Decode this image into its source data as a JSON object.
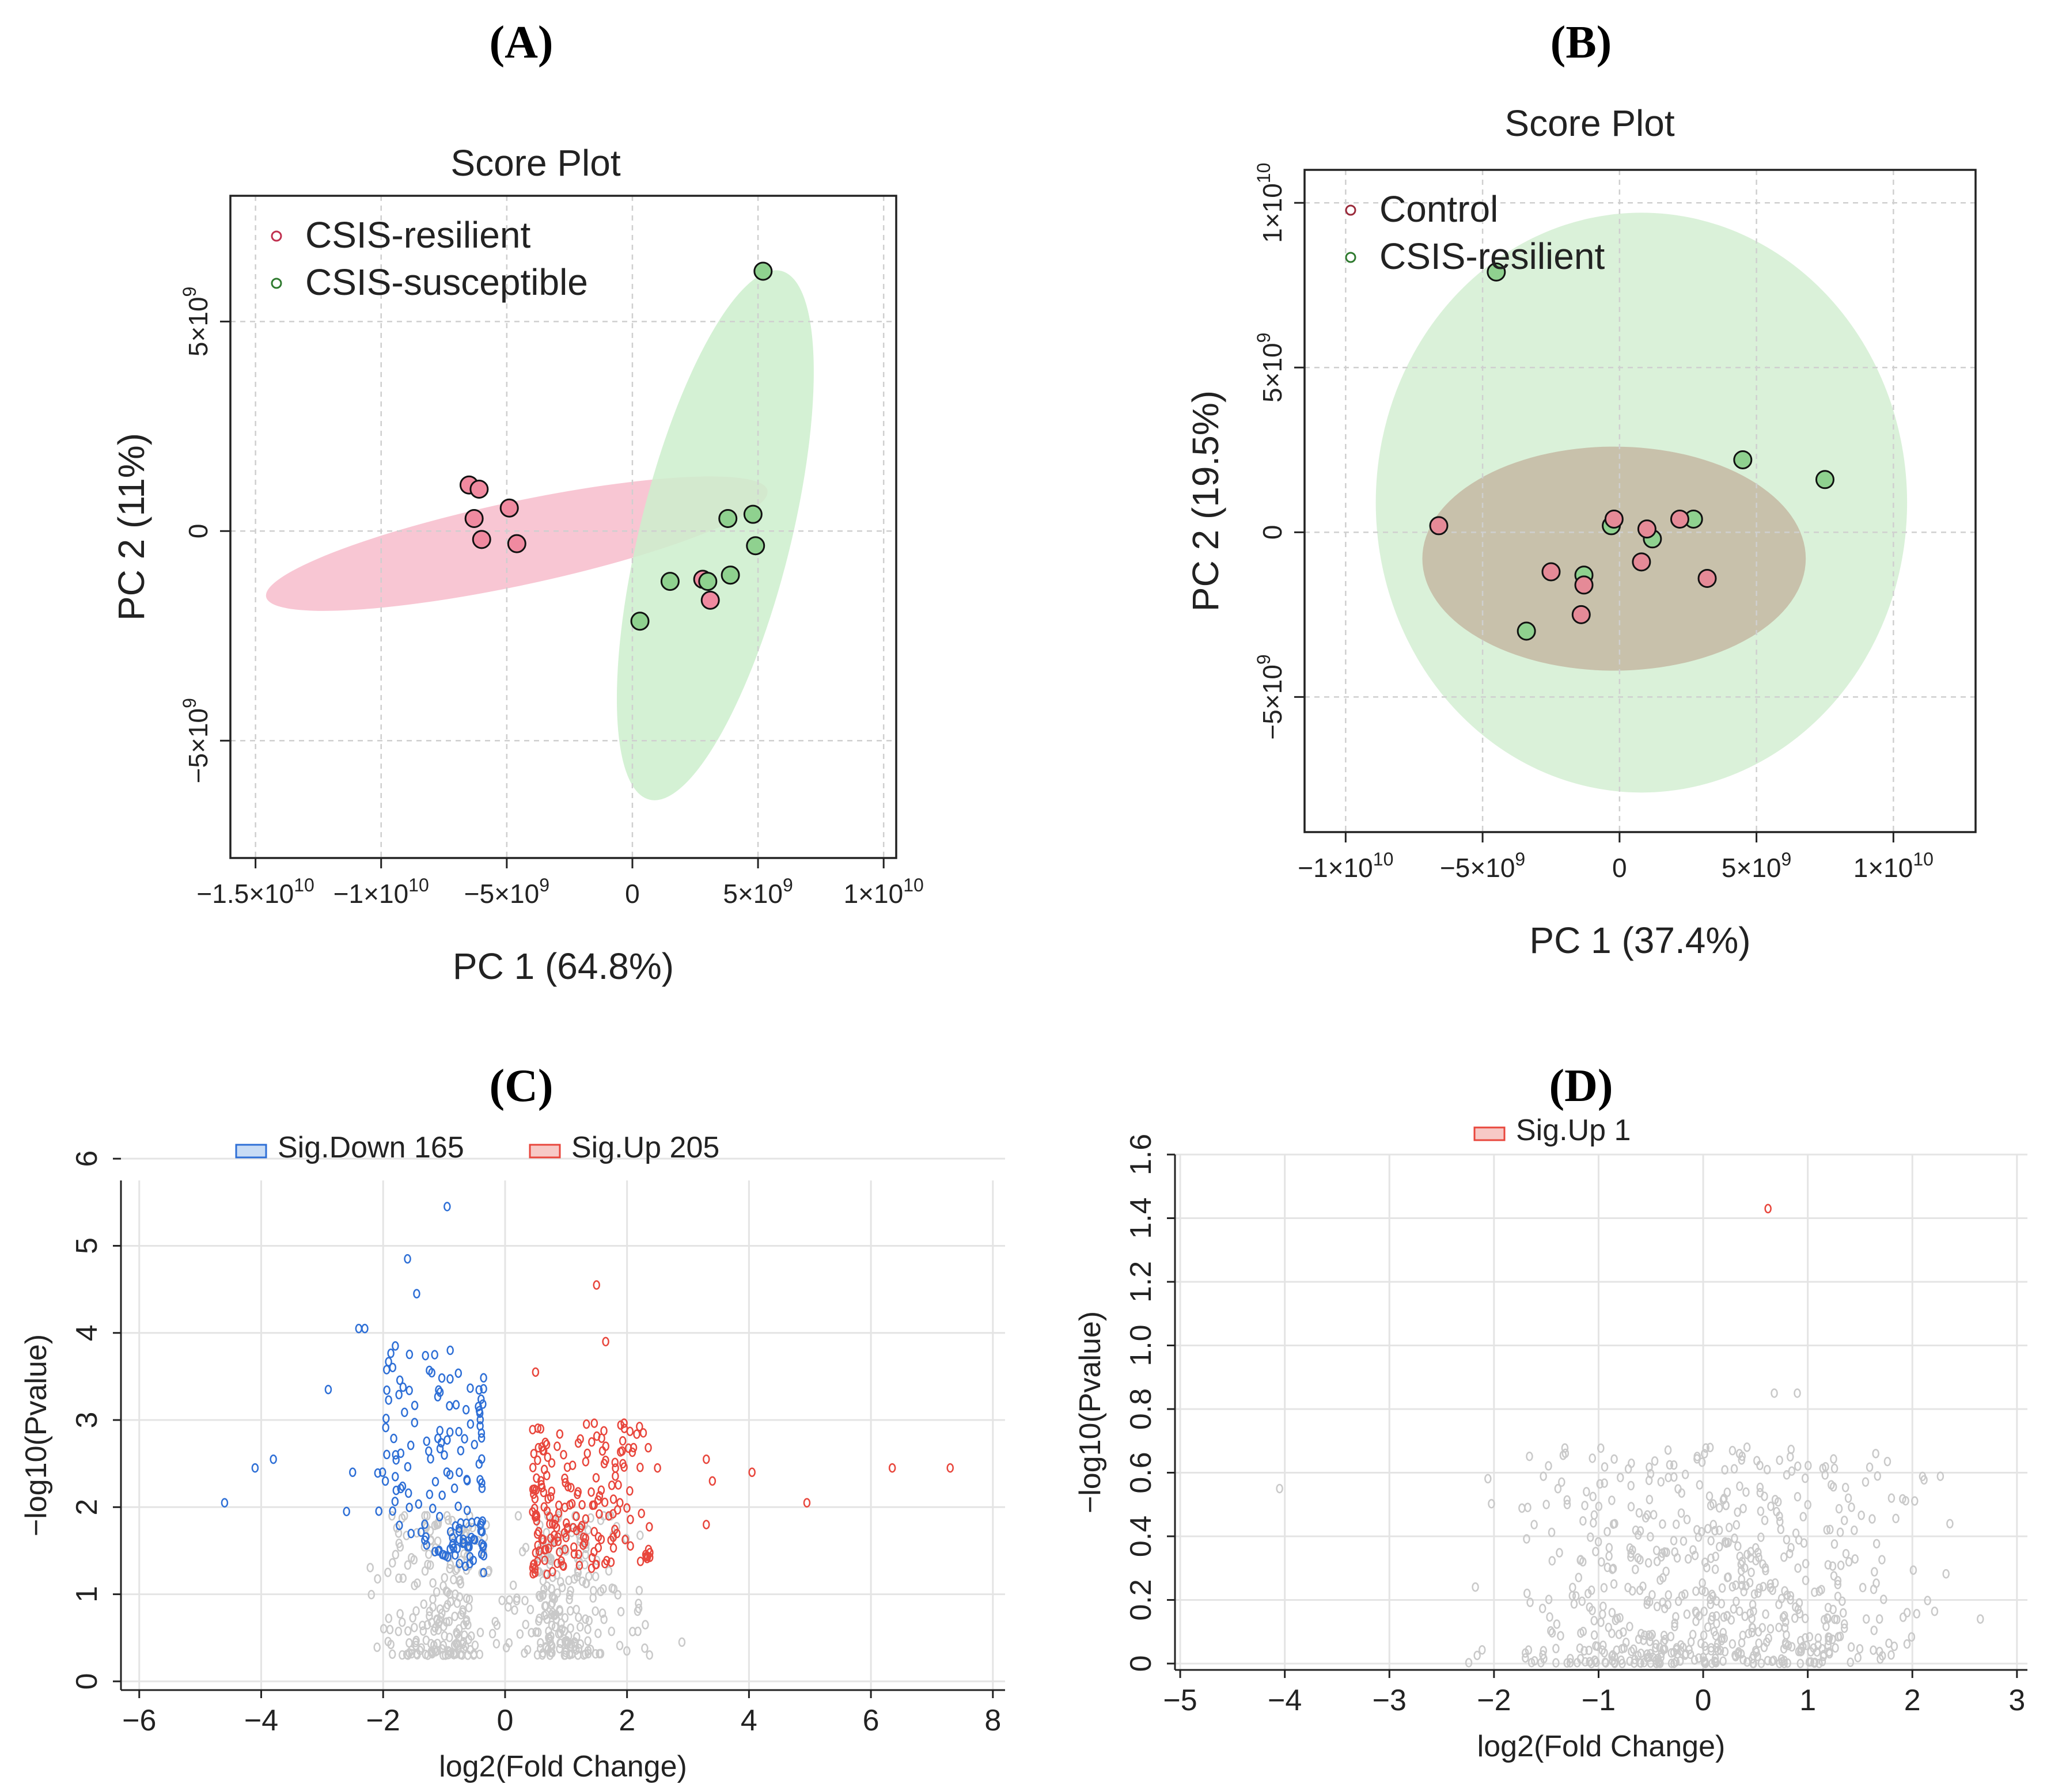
{
  "chart_data": [
    {
      "id": "A",
      "panel_label": "(A)",
      "type": "scatter",
      "title": "Score Plot",
      "xlabel": "PC 1 (64.8%)",
      "ylabel": "PC 2 (11%)",
      "xlim": [
        -16000000000.0,
        10500000000.0
      ],
      "ylim": [
        -7800000000.0,
        8000000000.0
      ],
      "xticks": [
        {
          "v": -15000000000.0,
          "m": "−1.5×10",
          "e": "10"
        },
        {
          "v": -10000000000.0,
          "m": "−1×10",
          "e": "10"
        },
        {
          "v": -5000000000.0,
          "m": "−5×10",
          "e": "9"
        },
        {
          "v": 0,
          "m": "0",
          "e": ""
        },
        {
          "v": 5000000000.0,
          "m": "5×10",
          "e": "9"
        },
        {
          "v": 10000000000.0,
          "m": "1×10",
          "e": "10"
        }
      ],
      "yticks": [
        {
          "v": 5000000000.0,
          "m": "5×10",
          "e": "9"
        },
        {
          "v": 0,
          "m": "0",
          "e": ""
        },
        {
          "v": -5000000000.0,
          "m": "−5×10",
          "e": "9"
        }
      ],
      "legend": [
        "CSIS-resilient",
        "CSIS-susceptible"
      ],
      "series": [
        {
          "name": "CSIS-resilient",
          "color": "#f08aa0",
          "stroke": "#c0304f",
          "ellipse": {
            "cx": -4600000000.0,
            "cy": -300000000.0,
            "rx": 10200000000.0,
            "ry": 1000000000.0,
            "angle": -12,
            "fill": "#f7bccb"
          },
          "points": [
            [
              -6500000000.0,
              1100000000.0
            ],
            [
              -6100000000.0,
              1000000000.0
            ],
            [
              -4900000000.0,
              550000000.0
            ],
            [
              -6300000000.0,
              300000000.0
            ],
            [
              -6000000000.0,
              -200000000.0
            ],
            [
              -4600000000.0,
              -300000000.0
            ],
            [
              2800000000.0,
              -1150000000.0
            ],
            [
              3100000000.0,
              -1650000000.0
            ]
          ]
        },
        {
          "name": "CSIS-susceptible",
          "color": "#8fd18f",
          "stroke": "#2f7a2f",
          "ellipse": {
            "cx": 3300000000.0,
            "cy": -100000000.0,
            "rx": 3000000000.0,
            "ry": 6500000000.0,
            "angle": 14,
            "fill": "#cceecc"
          },
          "points": [
            [
              5200000000.0,
              6200000000.0
            ],
            [
              4800000000.0,
              400000000.0
            ],
            [
              3800000000.0,
              300000000.0
            ],
            [
              4900000000.0,
              -350000000.0
            ],
            [
              3900000000.0,
              -1050000000.0
            ],
            [
              1500000000.0,
              -1200000000.0
            ],
            [
              3000000000.0,
              -1200000000.0
            ],
            [
              300000000.0,
              -2150000000.0
            ]
          ]
        }
      ]
    },
    {
      "id": "B",
      "panel_label": "(B)",
      "type": "scatter",
      "title": "Score Plot",
      "xlabel": "PC 1 (37.4%)",
      "ylabel": "PC 2 (19.5%)",
      "xlim": [
        -11500000000.0,
        13000000000.0
      ],
      "ylim": [
        -9100000000.0,
        11000000000.0
      ],
      "xticks": [
        {
          "v": -10000000000.0,
          "m": "−1×10",
          "e": "10"
        },
        {
          "v": -5000000000.0,
          "m": "−5×10",
          "e": "9"
        },
        {
          "v": 0,
          "m": "0",
          "e": ""
        },
        {
          "v": 5000000000.0,
          "m": "5×10",
          "e": "9"
        },
        {
          "v": 10000000000.0,
          "m": "1×10",
          "e": "10"
        }
      ],
      "yticks": [
        {
          "v": 10000000000.0,
          "m": "1×10",
          "e": "10"
        },
        {
          "v": 5000000000.0,
          "m": "5×10",
          "e": "9"
        },
        {
          "v": 0,
          "m": "0",
          "e": ""
        },
        {
          "v": -5000000000.0,
          "m": "−5×10",
          "e": "9"
        }
      ],
      "legend": [
        "Control",
        "CSIS-resilient"
      ],
      "series": [
        {
          "name": "CSIS-resilient",
          "color": "#8fd18f",
          "stroke": "#2f7a2f",
          "ellipse": {
            "cx": 800000000.0,
            "cy": 900000000.0,
            "rx": 9700000000.0,
            "ry": 8800000000.0,
            "angle": 0,
            "fill": "#d4efd2"
          },
          "points": [
            [
              -4500000000.0,
              7900000000.0
            ],
            [
              4500000000.0,
              2200000000.0
            ],
            [
              7500000000.0,
              1600000000.0
            ],
            [
              2700000000.0,
              400000000.0
            ],
            [
              -300000000.0,
              200000000.0
            ],
            [
              1200000000.0,
              -200000000.0
            ],
            [
              -1300000000.0,
              -1300000000.0
            ],
            [
              -3400000000.0,
              -3000000000.0
            ]
          ]
        },
        {
          "name": "Control",
          "color": "#e58a97",
          "stroke": "#9a2a3a",
          "ellipse": {
            "cx": -200000000.0,
            "cy": -800000000.0,
            "rx": 7000000000.0,
            "ry": 3400000000.0,
            "angle": 0,
            "fill": "#c4b8a2"
          },
          "points": [
            [
              -6600000000.0,
              200000000.0
            ],
            [
              -200000000.0,
              400000000.0
            ],
            [
              1000000000.0,
              100000000.0
            ],
            [
              2200000000.0,
              400000000.0
            ],
            [
              800000000.0,
              -900000000.0
            ],
            [
              -2500000000.0,
              -1200000000.0
            ],
            [
              -1300000000.0,
              -1600000000.0
            ],
            [
              3200000000.0,
              -1400000000.0
            ],
            [
              -1400000000.0,
              -2500000000.0
            ]
          ]
        }
      ]
    },
    {
      "id": "C",
      "panel_label": "(C)",
      "type": "scatter",
      "subtype": "volcano",
      "title": "",
      "xlabel": "log2(Fold Change)",
      "ylabel": "−log10(Pvalue)",
      "xlim": [
        -6.3,
        8.2
      ],
      "ylim": [
        -0.1,
        5.75
      ],
      "xticks": [
        -6,
        -4,
        -2,
        0,
        2,
        4,
        6,
        8
      ],
      "yticks": [
        0,
        1,
        2,
        3,
        4,
        5,
        6
      ],
      "legend": [
        {
          "label": "Sig.Down 165",
          "color": "#2e6fd6",
          "fill": "#c8dcf5"
        },
        {
          "label": "Sig.Up 205",
          "color": "#e8463c",
          "fill": "#f7c9c6"
        }
      ],
      "colors": {
        "down": "#2e6fd6",
        "up": "#e8463c",
        "ns": "#c9c9c9"
      },
      "counts": {
        "down": 165,
        "up": 205,
        "ns": 420
      },
      "extreme_points": {
        "down": [
          [
            -4.6,
            2.05
          ],
          [
            -4.1,
            2.45
          ],
          [
            -3.8,
            2.55
          ],
          [
            -2.9,
            3.35
          ],
          [
            -2.6,
            1.95
          ],
          [
            -2.5,
            2.4
          ],
          [
            -2.4,
            4.05
          ],
          [
            -2.3,
            4.05
          ],
          [
            -1.6,
            4.85
          ],
          [
            -1.45,
            4.45
          ],
          [
            -0.95,
            5.45
          ],
          [
            -1.8,
            3.85
          ],
          [
            -0.9,
            3.8
          ]
        ],
        "up": [
          [
            1.5,
            4.55
          ],
          [
            1.65,
            3.9
          ],
          [
            0.5,
            3.55
          ],
          [
            3.3,
            2.55
          ],
          [
            3.3,
            1.8
          ],
          [
            3.4,
            2.3
          ],
          [
            4.05,
            2.4
          ],
          [
            4.95,
            2.05
          ],
          [
            6.35,
            2.45
          ],
          [
            7.3,
            2.45
          ],
          [
            2.5,
            2.45
          ]
        ],
        "ns": [
          [
            2.9,
            0.45
          ],
          [
            2.3,
            0.65
          ],
          [
            1.9,
            0.8
          ]
        ]
      },
      "bulk": {
        "down": {
          "xmin": -2.1,
          "xmax": -0.35,
          "ymin": 1.2,
          "ymax": 3.5
        },
        "up": {
          "xmin": 0.45,
          "xmax": 2.4,
          "ymin": 1.2,
          "ymax": 2.9
        },
        "ns": {
          "xmin": -1.4,
          "xmax": 1.4,
          "ymin": 0.3,
          "ymax": 2.0
        }
      }
    },
    {
      "id": "D",
      "panel_label": "(D)",
      "type": "scatter",
      "subtype": "volcano",
      "title": "",
      "xlabel": "log2(Fold Change)",
      "ylabel": "−log10(Pvalue)",
      "xlim": [
        -5.05,
        3.1
      ],
      "ylim": [
        -0.02,
        1.6
      ],
      "xticks": [
        -5,
        -4,
        -3,
        -2,
        -1,
        0,
        1,
        2,
        3
      ],
      "yticks": [
        0,
        0.2,
        0.4,
        0.6,
        0.8,
        1.0,
        1.2,
        1.4,
        1.6
      ],
      "legend": [
        {
          "label": "Sig.Up 1",
          "color": "#e8463c",
          "fill": "#f7c9c6"
        }
      ],
      "colors": {
        "up": "#e8463c",
        "ns": "#c9c9c9"
      },
      "counts": {
        "up": 1,
        "ns": 640
      },
      "extreme_points": {
        "up": [
          [
            0.62,
            1.43
          ]
        ],
        "ns": [
          [
            -4.05,
            0.55
          ],
          [
            2.65,
            0.14
          ],
          [
            1.8,
            0.52
          ],
          [
            1.95,
            0.16
          ],
          [
            1.65,
            0.66
          ],
          [
            0.68,
            0.85
          ],
          [
            0.9,
            0.85
          ],
          [
            -1.5,
            0.5
          ],
          [
            -1.3,
            0.5
          ],
          [
            -1.15,
            0.32
          ],
          [
            -1.1,
            0.22
          ],
          [
            1.35,
            0.45
          ],
          [
            1.1,
            0.08
          ]
        ]
      },
      "bulk": {
        "ns": {
          "xmin": -1.2,
          "xmax": 1.2,
          "ymin": 0.0,
          "ymax": 0.68
        }
      }
    }
  ]
}
